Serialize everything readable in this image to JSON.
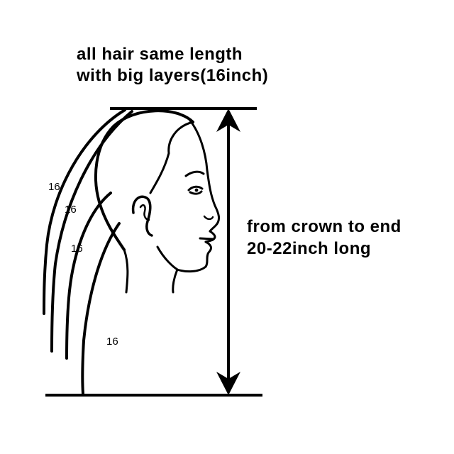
{
  "title": {
    "line1": "all hair same length",
    "line2": "with big layers(16inch)"
  },
  "measurement": {
    "line1": "from crown to end",
    "line2": "20-22inch long"
  },
  "layer_labels": [
    "16",
    "16",
    "16",
    "16"
  ],
  "colors": {
    "ink": "#000000",
    "background": "#ffffff"
  },
  "icons": [
    "head-profile-icon",
    "double-arrow-icon"
  ]
}
